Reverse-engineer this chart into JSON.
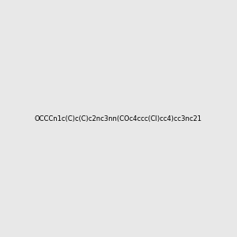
{
  "smiles": "OCCCn1c(C)c(C)c2nc3nn(COc4ccc(Cl)cc4)cc3nc21",
  "image_size": 300,
  "background_color": "#e8e8e8",
  "title": ""
}
